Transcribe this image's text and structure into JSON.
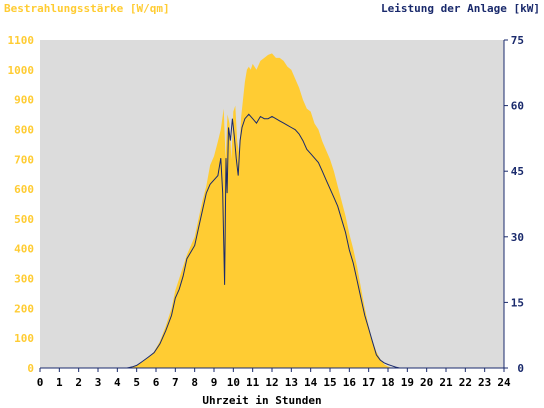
{
  "chart_data": {
    "type": "area",
    "title_left": "Bestrahlungsstärke [W/qm]",
    "title_right": "Leistung der Anlage [kW]",
    "xlabel": "Uhrzeit in Stunden",
    "xlim": [
      0,
      24
    ],
    "x_ticks": [
      "0",
      "1",
      "2",
      "3",
      "4",
      "5",
      "6",
      "7",
      "8",
      "9",
      "10",
      "11",
      "12",
      "13",
      "14",
      "15",
      "16",
      "17",
      "18",
      "19",
      "20",
      "21",
      "22",
      "23",
      "24"
    ],
    "left_axis": {
      "ylim": [
        0,
        1100
      ],
      "ticks": [
        "0",
        "100",
        "200",
        "300",
        "400",
        "500",
        "600",
        "700",
        "800",
        "900",
        "1000",
        "1100"
      ]
    },
    "right_axis": {
      "ylim": [
        0,
        75
      ],
      "ticks": [
        "0",
        "15",
        "30",
        "45",
        "60",
        "75"
      ]
    },
    "grid": false,
    "colors": {
      "background": "#dcdcdc",
      "irradiance_fill": "#ffcc33",
      "irradiance_text": "#ffcc33",
      "power_line": "#1a2a6c",
      "power_text": "#1a2a6c",
      "x_text": "#000000"
    },
    "series": [
      {
        "axis": "left",
        "x": [
          0,
          4.5,
          4.8,
          5,
          5.3,
          5.6,
          5.9,
          6.2,
          6.5,
          6.8,
          7.0,
          7.2,
          7.4,
          7.6,
          7.8,
          8.0,
          8.2,
          8.4,
          8.6,
          8.8,
          9.0,
          9.2,
          9.35,
          9.5,
          9.6,
          9.7,
          9.8,
          9.9,
          10.0,
          10.1,
          10.2,
          10.3,
          10.4,
          10.5,
          10.6,
          10.7,
          10.8,
          10.9,
          11.0,
          11.2,
          11.4,
          11.6,
          11.8,
          12.0,
          12.2,
          12.4,
          12.6,
          12.8,
          13.0,
          13.2,
          13.4,
          13.6,
          13.8,
          14.0,
          14.2,
          14.4,
          14.6,
          14.8,
          15.0,
          15.2,
          15.4,
          15.6,
          15.8,
          16.0,
          16.2,
          16.4,
          16.6,
          16.8,
          17.0,
          17.2,
          17.4,
          17.6,
          17.8,
          18.0,
          18.2,
          18.4,
          18.6,
          18.8,
          19.0,
          19.2,
          19.4,
          19.6,
          19.8,
          20.0,
          20.2,
          20.4,
          24
        ],
        "values": [
          0,
          0,
          5,
          10,
          20,
          35,
          55,
          90,
          140,
          200,
          260,
          300,
          340,
          380,
          410,
          440,
          500,
          560,
          610,
          680,
          710,
          760,
          800,
          870,
          700,
          850,
          820,
          700,
          860,
          880,
          760,
          720,
          840,
          900,
          960,
          1000,
          1010,
          1000,
          1020,
          1000,
          1030,
          1040,
          1050,
          1055,
          1040,
          1040,
          1030,
          1010,
          1000,
          970,
          940,
          900,
          870,
          860,
          820,
          800,
          760,
          730,
          700,
          660,
          610,
          560,
          510,
          450,
          400,
          340,
          270,
          200,
          140,
          90,
          55,
          30,
          12,
          5,
          0,
          0,
          0,
          0,
          0,
          0,
          0,
          0,
          0,
          0,
          0,
          0,
          0
        ],
        "note_color": "irradiance_fill"
      },
      {
        "axis": "right",
        "x": [
          0,
          4.5,
          4.8,
          5,
          5.3,
          5.6,
          5.9,
          6.2,
          6.5,
          6.8,
          7.0,
          7.2,
          7.4,
          7.6,
          7.8,
          8.0,
          8.2,
          8.4,
          8.6,
          8.8,
          9.0,
          9.2,
          9.35,
          9.45,
          9.55,
          9.62,
          9.68,
          9.75,
          9.85,
          9.95,
          10.05,
          10.15,
          10.25,
          10.35,
          10.45,
          10.6,
          10.8,
          11.0,
          11.2,
          11.4,
          11.6,
          11.8,
          12.0,
          12.2,
          12.4,
          12.6,
          12.8,
          13.0,
          13.2,
          13.4,
          13.6,
          13.8,
          14.0,
          14.2,
          14.4,
          14.6,
          14.8,
          15.0,
          15.2,
          15.4,
          15.6,
          15.8,
          16.0,
          16.2,
          16.4,
          16.6,
          16.8,
          17.0,
          17.2,
          17.4,
          17.6,
          17.8,
          18.0,
          18.2,
          18.4,
          18.6,
          18.8,
          19.0,
          19.2,
          19.4,
          19.6,
          19.8,
          20.0,
          24
        ],
        "values": [
          0,
          0,
          0.3,
          0.6,
          1.5,
          2.5,
          3.5,
          5.5,
          8.5,
          12,
          16,
          18,
          21,
          25,
          26.5,
          28,
          32,
          36,
          40,
          42,
          43,
          44,
          48,
          40,
          19,
          48,
          40,
          55,
          52,
          57,
          53,
          48,
          44,
          52,
          55,
          57,
          58,
          57,
          56,
          57.5,
          57,
          57,
          57.5,
          57,
          56.5,
          56,
          55.5,
          55,
          54.5,
          53.5,
          52,
          50,
          49,
          48,
          47,
          45,
          43,
          41,
          39,
          37,
          34,
          31,
          27,
          24,
          20,
          16,
          12,
          9,
          6,
          3,
          1.8,
          1.2,
          0.8,
          0.5,
          0.2,
          0,
          0,
          0,
          0,
          0,
          0,
          0,
          0,
          0
        ],
        "note_color": "power_line"
      }
    ]
  }
}
